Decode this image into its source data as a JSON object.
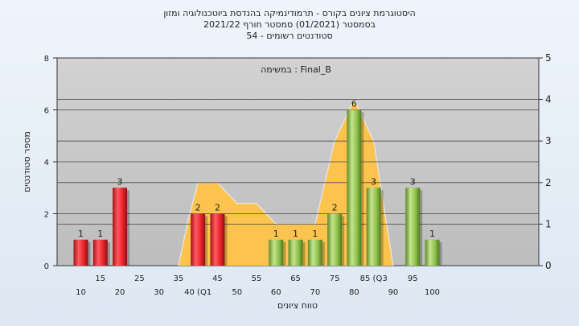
{
  "chart_data": {
    "type": "bar",
    "title_lines": [
      "היסטוגרמת ציונים בקורס - תרמודינמיקה בהנדסת ביוטכנולוגיה ומזון",
      "בסמסטר  (01/2021)  סמסטר חורף 2021/22",
      "סטודנטים רשומים - 54"
    ],
    "annotation": "במשימה : Final_B",
    "xlabel": "טווח ציונים",
    "ylabel": "מספר סטודנטים",
    "x_tick_labels_top": [
      "15",
      "25",
      "35",
      "45",
      "55",
      "65",
      "75",
      "85 (Q3",
      "95"
    ],
    "x_tick_labels_bottom": [
      "10",
      "20",
      "30",
      "40 (Q1",
      "50",
      "60",
      "70",
      "80",
      "90",
      "100"
    ],
    "ylim": [
      0,
      8
    ],
    "y_ticks": [
      "0",
      "2",
      "4",
      "6",
      "8"
    ],
    "y2lim": [
      0,
      5
    ],
    "y2_ticks": [
      "0",
      "1",
      "2",
      "3",
      "4",
      "5"
    ],
    "bars": [
      {
        "x": 10,
        "value": 1,
        "label": "1",
        "color": "red"
      },
      {
        "x": 15,
        "value": 1,
        "label": "1",
        "color": "red"
      },
      {
        "x": 20,
        "value": 3,
        "label": "3",
        "color": "red"
      },
      {
        "x": 40,
        "value": 2,
        "label": "2",
        "color": "red"
      },
      {
        "x": 45,
        "value": 2,
        "label": "2",
        "color": "red"
      },
      {
        "x": 60,
        "value": 1,
        "label": "1",
        "color": "green"
      },
      {
        "x": 65,
        "value": 1,
        "label": "1",
        "color": "green"
      },
      {
        "x": 70,
        "value": 1,
        "label": "1",
        "color": "green"
      },
      {
        "x": 75,
        "value": 2,
        "label": "2",
        "color": "green"
      },
      {
        "x": 80,
        "value": 6,
        "label": "6",
        "color": "green"
      },
      {
        "x": 85,
        "value": 3,
        "label": "3",
        "color": "green"
      },
      {
        "x": 95,
        "value": 3,
        "label": "3",
        "color": "green"
      },
      {
        "x": 100,
        "value": 1,
        "label": "1",
        "color": "green"
      }
    ],
    "area_series": {
      "axis": "secondary",
      "points": [
        [
          35,
          0
        ],
        [
          37.5,
          1.1
        ],
        [
          40,
          2
        ],
        [
          45,
          2
        ],
        [
          50,
          1.5
        ],
        [
          55,
          1.5
        ],
        [
          60,
          1
        ],
        [
          70,
          1
        ],
        [
          75,
          3
        ],
        [
          80,
          4
        ],
        [
          85,
          3
        ],
        [
          90,
          0
        ]
      ]
    },
    "colors": {
      "plot_bg": "#c8c8c8",
      "area": "#fcc44f",
      "red_bar": "#e5242b",
      "green_bar": "#8cc04a",
      "grid": "#444444"
    }
  }
}
